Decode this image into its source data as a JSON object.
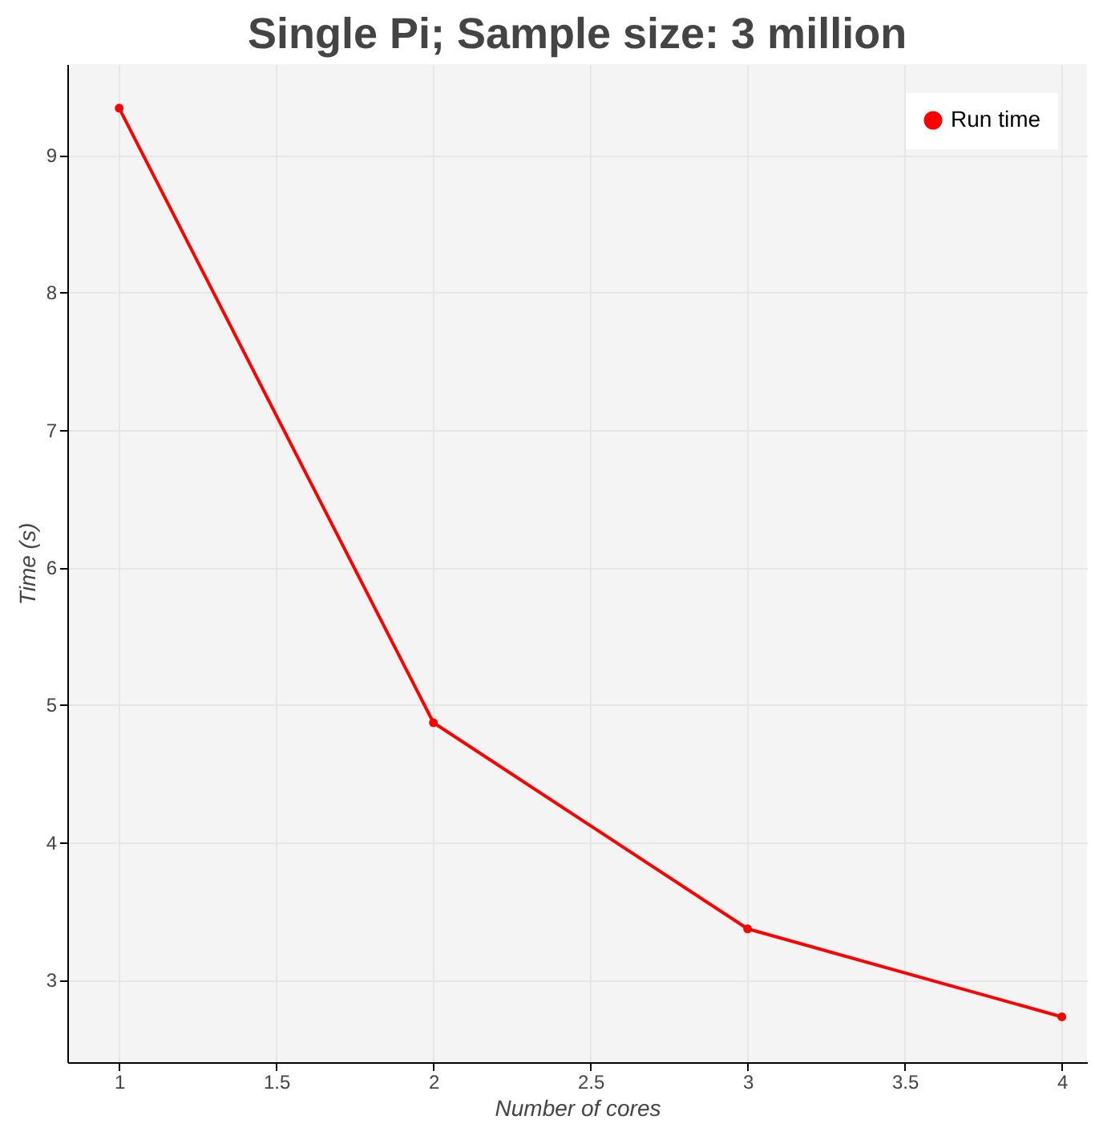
{
  "chart_data": {
    "type": "line",
    "title": "Single Pi; Sample size: 3 million",
    "xlabel": "Number of cores",
    "ylabel": "Time (s)",
    "x": [
      1,
      2,
      3,
      4
    ],
    "series": [
      {
        "name": "Run time",
        "color": "#ff0000",
        "values": [
          9.34,
          4.87,
          3.37,
          2.73
        ]
      }
    ],
    "xlim": [
      0.835,
      4.08
    ],
    "xticks": [
      1,
      1.5,
      2,
      2.5,
      3,
      3.5,
      4
    ],
    "ylim": [
      2.4,
      9.66
    ],
    "yticks": [
      3,
      4,
      5,
      6,
      7,
      8,
      9
    ],
    "grid": true,
    "legend": "top right",
    "marker": "circle",
    "line_style": "solid"
  }
}
